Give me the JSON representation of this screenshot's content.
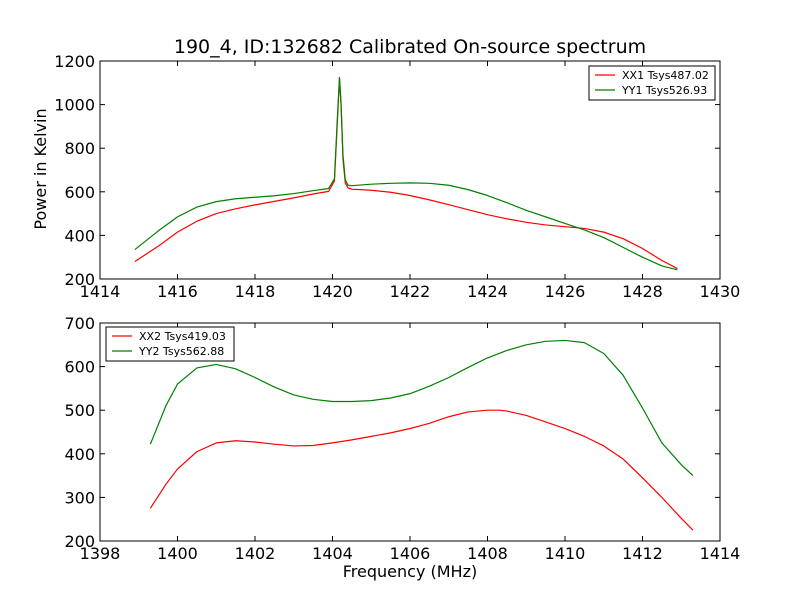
{
  "figure": {
    "title": "190_4, ID:132682 Calibrated On-source spectrum"
  },
  "colors": {
    "red_series": "#ff0000",
    "green_series": "#008000",
    "axes": "#000000",
    "background": "#ffffff"
  },
  "chart_data": [
    {
      "type": "line",
      "title": "190_4, ID:132682 Calibrated On-source spectrum",
      "xlabel": "",
      "ylabel": "Power in Kelvin",
      "xlim": [
        1414,
        1430
      ],
      "ylim": [
        200,
        1200
      ],
      "xticks": [
        1414,
        1416,
        1418,
        1420,
        1422,
        1424,
        1426,
        1428,
        1430
      ],
      "yticks": [
        200,
        400,
        600,
        800,
        1000,
        1200
      ],
      "xtick_labels": [
        "1414",
        "1416",
        "1418",
        "1420",
        "1422",
        "1424",
        "1426",
        "1428",
        "1430"
      ],
      "ytick_labels": [
        "200",
        "400",
        "600",
        "800",
        "1000",
        "1200"
      ],
      "grid": false,
      "legend_position": "upper right",
      "series": [
        {
          "name": "XX1 Tsys487.02",
          "color": "#ff0000",
          "x": [
            1414.9,
            1415.5,
            1416,
            1416.5,
            1417,
            1417.5,
            1418,
            1418.5,
            1419,
            1419.5,
            1419.9,
            1420.05,
            1420.12,
            1420.18,
            1420.22,
            1420.27,
            1420.33,
            1420.4,
            1420.5,
            1421,
            1421.5,
            1422,
            1422.5,
            1423,
            1423.5,
            1424,
            1424.5,
            1425,
            1425.5,
            1426,
            1426.5,
            1427,
            1427.5,
            1428,
            1428.5,
            1428.9
          ],
          "y": [
            280,
            350,
            415,
            465,
            500,
            522,
            540,
            556,
            572,
            590,
            602,
            650,
            900,
            1120,
            1000,
            750,
            640,
            618,
            612,
            607,
            598,
            583,
            563,
            541,
            518,
            495,
            476,
            460,
            448,
            440,
            432,
            415,
            385,
            340,
            285,
            248
          ]
        },
        {
          "name": "YY1 Tsys526.93",
          "color": "#008000",
          "x": [
            1414.9,
            1415.5,
            1416,
            1416.5,
            1417,
            1417.5,
            1418,
            1418.5,
            1419,
            1419.5,
            1419.9,
            1420.05,
            1420.12,
            1420.18,
            1420.22,
            1420.27,
            1420.33,
            1420.4,
            1420.5,
            1421,
            1421.5,
            1422,
            1422.5,
            1423,
            1423.5,
            1424,
            1424.5,
            1425,
            1425.5,
            1426,
            1426.5,
            1427,
            1427.5,
            1428,
            1428.5,
            1428.9
          ],
          "y": [
            335,
            420,
            485,
            530,
            555,
            568,
            575,
            582,
            592,
            605,
            615,
            660,
            920,
            1125,
            1010,
            770,
            655,
            630,
            628,
            635,
            639,
            641,
            639,
            630,
            610,
            583,
            550,
            515,
            485,
            455,
            425,
            390,
            345,
            300,
            260,
            242
          ]
        }
      ]
    },
    {
      "type": "line",
      "title": "",
      "xlabel": "Frequency (MHz)",
      "ylabel": "",
      "xlim": [
        1398,
        1414
      ],
      "ylim": [
        200,
        700
      ],
      "xticks": [
        1398,
        1400,
        1402,
        1404,
        1406,
        1408,
        1410,
        1412,
        1414
      ],
      "yticks": [
        200,
        300,
        400,
        500,
        600,
        700
      ],
      "xtick_labels": [
        "1398",
        "1400",
        "1402",
        "1404",
        "1406",
        "1408",
        "1410",
        "1412",
        "1414"
      ],
      "ytick_labels": [
        "200",
        "300",
        "400",
        "500",
        "600",
        "700"
      ],
      "grid": false,
      "legend_position": "upper left",
      "series": [
        {
          "name": "XX2 Tsys419.03",
          "color": "#ff0000",
          "x": [
            1399.3,
            1399.7,
            1400,
            1400.5,
            1401,
            1401.5,
            1402,
            1402.5,
            1403,
            1403.5,
            1404,
            1404.5,
            1405,
            1405.5,
            1406,
            1406.3,
            1406.5,
            1407,
            1407.5,
            1408,
            1408.3,
            1408.5,
            1409,
            1409.5,
            1410,
            1410.5,
            1411,
            1411.5,
            1412,
            1412.5,
            1413,
            1413.3
          ],
          "y": [
            275,
            330,
            365,
            405,
            425,
            430,
            427,
            422,
            418,
            419,
            425,
            432,
            440,
            448,
            458,
            465,
            470,
            485,
            496,
            500,
            500,
            498,
            488,
            473,
            458,
            440,
            418,
            388,
            345,
            300,
            252,
            225
          ]
        },
        {
          "name": "YY2 Tsys562.88",
          "color": "#008000",
          "x": [
            1399.3,
            1399.7,
            1400,
            1400.5,
            1401,
            1401.5,
            1402,
            1402.5,
            1403,
            1403.5,
            1404,
            1404.5,
            1405,
            1405.5,
            1406,
            1406.5,
            1407,
            1407.5,
            1408,
            1408.5,
            1409,
            1409.5,
            1410,
            1410.5,
            1411,
            1411.5,
            1412,
            1412.5,
            1413,
            1413.3
          ],
          "y": [
            422,
            510,
            560,
            597,
            605,
            595,
            575,
            553,
            535,
            525,
            520,
            520,
            522,
            528,
            538,
            555,
            575,
            598,
            620,
            637,
            650,
            658,
            660,
            655,
            630,
            580,
            505,
            425,
            375,
            350
          ]
        }
      ]
    }
  ]
}
